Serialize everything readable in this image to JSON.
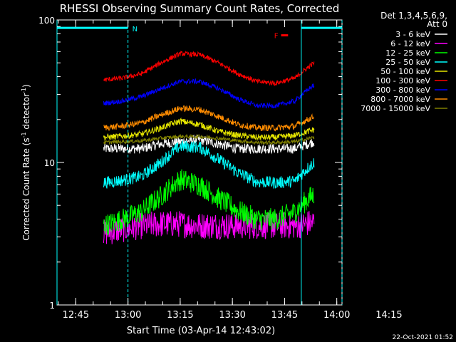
{
  "chart_data": {
    "type": "line",
    "title": "RHESSI Observing Summary Count Rates, Corrected",
    "xlabel": "Start Time (03-Apr-14 12:43:02)",
    "ylabel": "Corrected Count Rate (s",
    "ylabel_sup1": "-1",
    "ylabel_mid": " detector",
    "ylabel_sup2": "-1",
    "ylabel_end": ")",
    "y_scale": "log",
    "ylim": [
      1,
      100
    ],
    "y_ticks": [
      {
        "v": 1,
        "label": "1"
      },
      {
        "v": 10,
        "label": "10"
      },
      {
        "v": 100,
        "label": "100"
      }
    ],
    "xlim_min": [
      -3.4,
      78.5
    ],
    "x_ticks": [
      {
        "v": 2,
        "label": "12:45"
      },
      {
        "v": 17,
        "label": "13:00"
      },
      {
        "v": 32,
        "label": "13:15"
      },
      {
        "v": 47,
        "label": "13:30"
      },
      {
        "v": 62,
        "label": "13:45"
      },
      {
        "v": 77,
        "label": "14:00"
      },
      {
        "v": 92,
        "label": "14:15"
      }
    ],
    "x_tick_values": [
      2,
      17,
      32,
      47,
      62,
      77,
      92
    ],
    "data_start_min": 10,
    "data_end_min": 70.5,
    "annotations": {
      "night_label": "N",
      "flare_label": "F",
      "night_bar_1": [
        -3.4,
        17
      ],
      "night_bar_2": [
        66.8,
        78.5
      ],
      "flare_bar_min": [
        61,
        63
      ],
      "flare_bar_value": 78,
      "night_bar_value": 88
    },
    "legend": {
      "header": "Det 1,3,4,5,6,9,",
      "att": "Att 0",
      "placement": "top-right"
    },
    "series": [
      {
        "name": "3 - 6 keV",
        "color": "#ffffff",
        "shape": [
          12.5,
          12.5,
          12.5,
          13.5,
          14.0,
          14.5,
          13.5,
          12.5,
          12.5,
          12.5,
          12.5,
          14.0
        ],
        "noise": 0.08
      },
      {
        "name": "6 - 12 keV",
        "color": "#ff00ff",
        "shape": [
          3.2,
          3.4,
          3.6,
          3.7,
          3.7,
          3.6,
          3.6,
          3.6,
          3.6,
          3.6,
          3.6,
          3.8
        ],
        "noise": 0.22
      },
      {
        "name": "12 - 25 keV",
        "color": "#00ff00",
        "shape": [
          3.6,
          4.0,
          4.5,
          5.8,
          7.6,
          7.0,
          5.6,
          4.6,
          4.0,
          4.0,
          4.5,
          6.0
        ],
        "noise": 0.18
      },
      {
        "name": "25 - 50 keV",
        "color": "#00ffff",
        "shape": [
          7.2,
          7.5,
          8.0,
          10.0,
          13.0,
          12.8,
          10.5,
          8.5,
          7.3,
          7.2,
          7.4,
          10.0
        ],
        "noise": 0.1
      },
      {
        "name": "50 - 100 keV",
        "color": "#e6e600",
        "shape": [
          15.0,
          15.3,
          15.8,
          17.5,
          19.5,
          18.5,
          16.5,
          15.5,
          15.0,
          15.0,
          15.5,
          17.0
        ],
        "noise": 0.05
      },
      {
        "name": "100 - 300 keV",
        "color": "#ff0000",
        "shape": [
          38,
          39,
          42,
          50,
          58,
          57,
          50,
          42,
          37,
          36,
          39,
          50
        ],
        "noise": 0.04
      },
      {
        "name": "300 - 800 keV",
        "color": "#0000ff",
        "shape": [
          26,
          27,
          29,
          33,
          37,
          37,
          33,
          28,
          25,
          25,
          27,
          35
        ],
        "noise": 0.04
      },
      {
        "name": "800 - 7000 keV",
        "color": "#ff8c00",
        "shape": [
          17.5,
          18.0,
          19.0,
          21.5,
          24.0,
          23.5,
          21.0,
          18.5,
          17.5,
          17.5,
          18.0,
          21.0
        ],
        "noise": 0.05
      },
      {
        "name": "7000 - 15000 keV",
        "color": "#808000",
        "shape": [
          13.8,
          14.0,
          14.2,
          14.8,
          15.2,
          15.2,
          14.8,
          14.2,
          13.8,
          13.8,
          14.0,
          15.0
        ],
        "noise": 0.03
      }
    ]
  },
  "footer": {
    "timestamp": "22-Oct-2021 01:52"
  }
}
